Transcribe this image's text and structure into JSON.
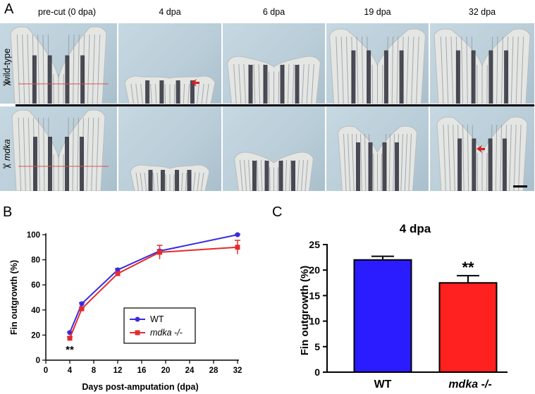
{
  "panel_a": {
    "letter": "A",
    "columns": [
      "pre-cut (0 dpa)",
      "4 dpa",
      "6 dpa",
      "19 dpa",
      "32 dpa"
    ],
    "rows": [
      {
        "label": "wild-type",
        "italic": false
      },
      {
        "label": "mdka",
        "italic": true
      }
    ],
    "scissors_symbol": "✂",
    "colors": {
      "background": "#b9cdd8",
      "fin": "#e4e6e3",
      "ray": "#8b8f98",
      "pigment": "#2e2f3c",
      "cut_line": "#e05050",
      "arrow": "#d42020"
    }
  },
  "panel_b": {
    "letter": "B",
    "significance_label": "**",
    "legend": [
      {
        "key": "wt",
        "label": "WT",
        "italic": false
      },
      {
        "key": "mdka",
        "label": "mdka -/-",
        "italic": true
      }
    ],
    "chart_data": {
      "type": "line",
      "xlabel": "Days post-amputation (dpa)",
      "ylabel": "Fin outgrowth (%)",
      "xlim": [
        0,
        32
      ],
      "ylim": [
        0,
        100
      ],
      "xticks": [
        0,
        4,
        8,
        12,
        16,
        20,
        24,
        28,
        32
      ],
      "yticks": [
        0,
        20,
        40,
        60,
        80,
        100
      ],
      "series": [
        {
          "key": "wt",
          "name": "WT",
          "color": "#3a2be0",
          "marker": "circle",
          "x": [
            4,
            6,
            12,
            19,
            32
          ],
          "y": [
            22,
            45,
            72,
            87,
            100
          ],
          "err": [
            0.5,
            0.8,
            1.0,
            1.0,
            0.5
          ]
        },
        {
          "key": "mdka",
          "name": "mdka -/-",
          "color": "#e52b2b",
          "marker": "square",
          "x": [
            4,
            6,
            12,
            19,
            32
          ],
          "y": [
            17.5,
            41,
            69,
            86,
            90
          ],
          "err": [
            1.2,
            1.2,
            1.0,
            5.5,
            5.5
          ]
        }
      ]
    }
  },
  "panel_c": {
    "letter": "C",
    "title": "4 dpa",
    "significance_label": "**",
    "chart_data": {
      "type": "bar",
      "ylabel": "Fin outgrowth (%)",
      "categories": [
        {
          "label": "WT",
          "italic": false
        },
        {
          "label": "mdka -/-",
          "italic": true
        }
      ],
      "values": [
        22,
        17.5
      ],
      "errors": [
        0.7,
        1.4
      ],
      "colors": [
        "#2b1cff",
        "#ff2020"
      ],
      "ylim": [
        0,
        25
      ],
      "yticks": [
        0,
        5,
        10,
        15,
        20,
        25
      ]
    }
  }
}
